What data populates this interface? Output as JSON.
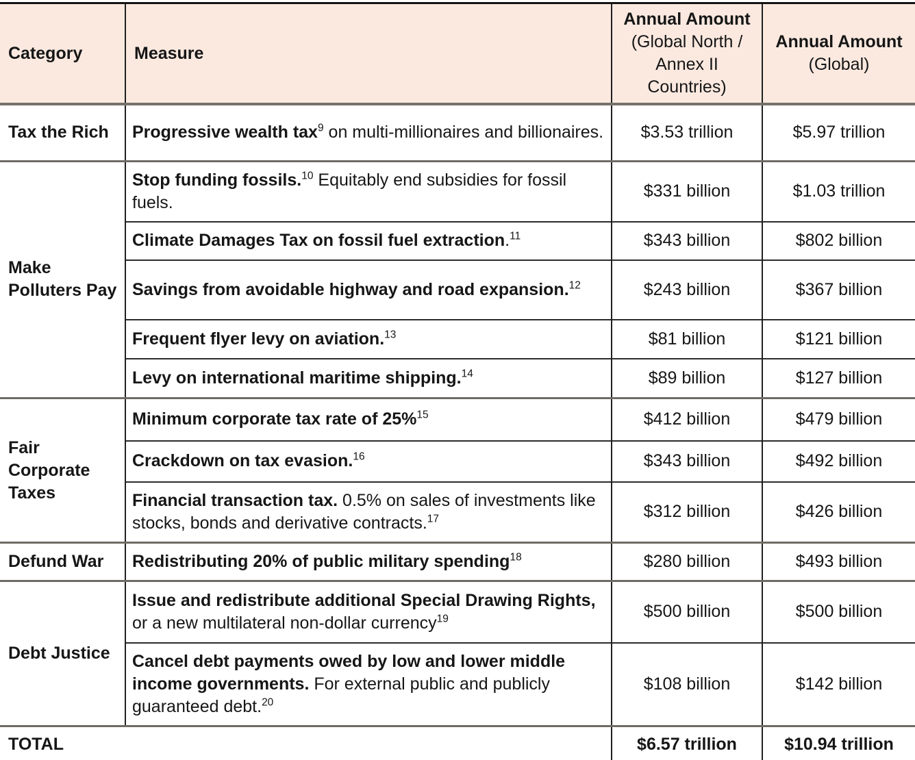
{
  "colors": {
    "header_bg": "#fbe9e0",
    "text": "#161616",
    "inner_rule": "#2b2b2b",
    "group_rule": "#6e6b64",
    "top_rule": "#131313",
    "below_strip": "#f9efe9"
  },
  "header": {
    "category": "Category",
    "measure": "Measure",
    "amount_north_title": "Annual Amount",
    "amount_north_sub": "(Global North / Annex II Countries)",
    "amount_global_title": "Annual Amount",
    "amount_global_sub": "(Global)"
  },
  "groups": [
    {
      "category": "Tax the Rich",
      "rows": [
        {
          "measure": [
            {
              "b": "Progressive wealth tax"
            },
            {
              "sup": "9"
            },
            {
              "t": " on multi-millionaires and billionaires."
            }
          ],
          "amount_north": "$3.53 trillion",
          "amount_global": "$5.97 trillion"
        }
      ]
    },
    {
      "category": "Make Polluters Pay",
      "rows": [
        {
          "measure": [
            {
              "b": "Stop funding fossils."
            },
            {
              "sup": "10"
            },
            {
              "t": " Equitably end subsidies for fossil fuels."
            }
          ],
          "amount_north": "$331 billion",
          "amount_global": "$1.03 trillion"
        },
        {
          "measure": [
            {
              "b": "Climate Damages Tax on fossil fuel extraction"
            },
            {
              "t": "."
            },
            {
              "sup": "11"
            }
          ],
          "amount_north": "$343 billion",
          "amount_global": "$802 billion"
        },
        {
          "measure": [
            {
              "b": "Savings from avoidable highway and road expansion."
            },
            {
              "sup": "12"
            }
          ],
          "amount_north": "$243 billion",
          "amount_global": "$367 billion"
        },
        {
          "measure": [
            {
              "b": "Frequent flyer levy on aviation."
            },
            {
              "sup": "13"
            }
          ],
          "amount_north": "$81 billion",
          "amount_global": "$121 billion"
        },
        {
          "measure": [
            {
              "b": "Levy on international maritime shipping."
            },
            {
              "sup": "14"
            }
          ],
          "amount_north": "$89 billion",
          "amount_global": "$127 billion"
        }
      ]
    },
    {
      "category": "Fair Corporate Taxes",
      "rows": [
        {
          "measure": [
            {
              "b": "Minimum corporate tax rate of 25%"
            },
            {
              "sup": "15"
            }
          ],
          "amount_north": "$412 billion",
          "amount_global": "$479 billion"
        },
        {
          "measure": [
            {
              "b": "Crackdown on tax evasion."
            },
            {
              "sup": "16"
            }
          ],
          "amount_north": "$343 billion",
          "amount_global": "$492 billion"
        },
        {
          "measure": [
            {
              "b": "Financial transaction tax."
            },
            {
              "t": " 0.5% on sales of investments like stocks, bonds and derivative contracts."
            },
            {
              "sup": "17"
            }
          ],
          "amount_north": "$312 billion",
          "amount_global": "$426 billion"
        }
      ]
    },
    {
      "category": "Defund War",
      "rows": [
        {
          "measure": [
            {
              "b": "Redistributing 20% of public military spending"
            },
            {
              "sup": "18"
            }
          ],
          "amount_north": "$280 billion",
          "amount_global": "$493 billion"
        }
      ]
    },
    {
      "category": "Debt Justice",
      "rows": [
        {
          "measure": [
            {
              "b": "Issue and redistribute additional Special Drawing Rights,"
            },
            {
              "t": " or a new multilateral non-dollar currency"
            },
            {
              "sup": "19"
            }
          ],
          "amount_north": "$500 billion",
          "amount_global": "$500 billion"
        },
        {
          "measure": [
            {
              "b": "Cancel debt payments owed by low and lower middle income governments."
            },
            {
              "t": " For external public and publicly guaranteed debt."
            },
            {
              "sup": "20"
            }
          ],
          "amount_north": "$108 billion",
          "amount_global": "$142 billion"
        }
      ]
    }
  ],
  "total": {
    "label": "TOTAL",
    "amount_north": "$6.57 trillion",
    "amount_global": "$10.94 trillion"
  }
}
